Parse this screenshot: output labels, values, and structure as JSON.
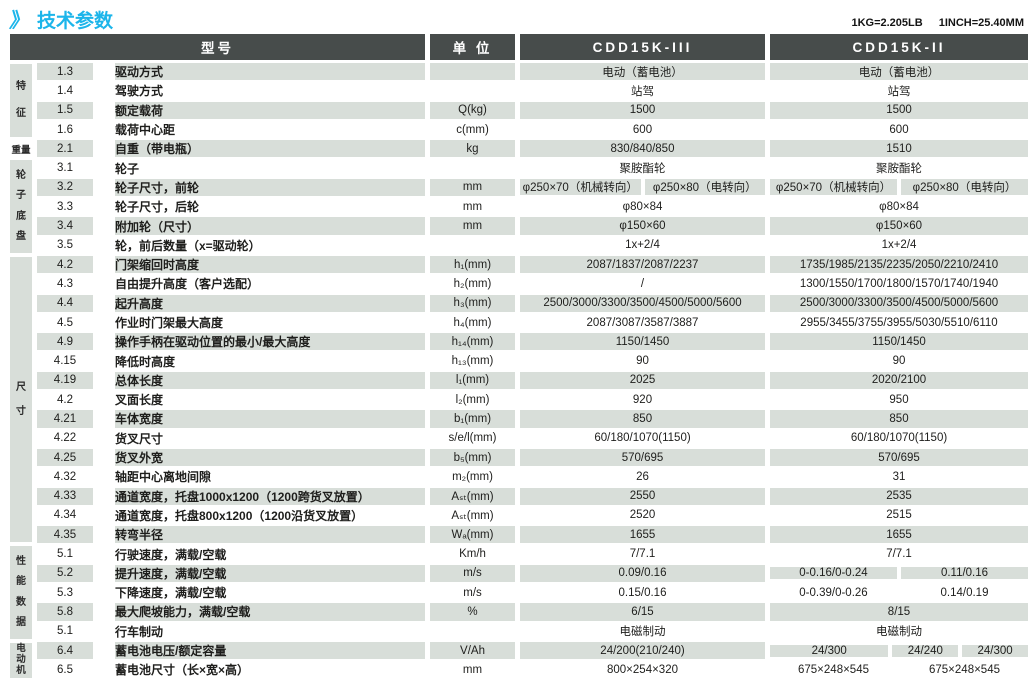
{
  "page": {
    "title_marker": "》",
    "title": "技术参数",
    "conversion": {
      "kg": "1KG=2.205LB",
      "inch": "1INCH=25.40MM"
    }
  },
  "colors": {
    "accent_cyan": "#1cb5ea",
    "header_bg": "#474c4b",
    "stripe_bg": "#d8ded9"
  },
  "table": {
    "headers": {
      "model": "型号",
      "unit": "单 位",
      "col1": "CDD15K-III",
      "col2": "CDD15K-II"
    },
    "groups": [
      {
        "label": "特征",
        "rows": 4,
        "vertical": true,
        "shaded": true
      },
      {
        "label": "重量",
        "rows": 1,
        "vertical": false,
        "shaded": false
      },
      {
        "label": "轮子底盘",
        "rows": 5,
        "vertical": true,
        "shaded": true
      },
      {
        "label": "尺寸",
        "rows": 15,
        "vertical": true,
        "shaded": true,
        "spread": "center"
      },
      {
        "label": "性能数据",
        "rows": 5,
        "vertical": true,
        "shaded": true
      },
      {
        "label": "电动机",
        "rows": 2,
        "vertical": true,
        "shaded": true,
        "tight": true
      }
    ],
    "rows": [
      {
        "no": "1.3",
        "desc": "驱动方式",
        "unit": "",
        "v1": [
          "电动（蓄电池）"
        ],
        "v2": [
          "电动（蓄电池）"
        ]
      },
      {
        "no": "1.4",
        "desc": "驾驶方式",
        "unit": "",
        "v1": [
          "站驾"
        ],
        "v2": [
          "站驾"
        ]
      },
      {
        "no": "1.5",
        "desc": "额定载荷",
        "unit": "Q(kg)",
        "v1": [
          "1500"
        ],
        "v2": [
          "1500"
        ]
      },
      {
        "no": "1.6",
        "desc": "载荷中心距",
        "unit": "c(mm)",
        "v1": [
          "600"
        ],
        "v2": [
          "600"
        ]
      },
      {
        "no": "2.1",
        "desc": "自重（带电瓶）",
        "unit": "kg",
        "v1": [
          "830/840/850"
        ],
        "v2": [
          "1510"
        ]
      },
      {
        "no": "3.1",
        "desc": "轮子",
        "unit": "",
        "v1": [
          "聚胺酯轮"
        ],
        "v2": [
          "聚胺酯轮"
        ]
      },
      {
        "no": "3.2",
        "desc": "轮子尺寸，前轮",
        "unit": "mm",
        "v1": [
          "φ250×70（机械转向）",
          "φ250×80（电转向）"
        ],
        "v2": [
          "φ250×70（机械转向）",
          "φ250×80（电转向）"
        ]
      },
      {
        "no": "3.3",
        "desc": "轮子尺寸，后轮",
        "unit": "mm",
        "v1": [
          "φ80×84"
        ],
        "v2": [
          "φ80×84"
        ]
      },
      {
        "no": "3.4",
        "desc": "附加轮（尺寸）",
        "unit": "mm",
        "v1": [
          "φ150×60"
        ],
        "v2": [
          "φ150×60"
        ]
      },
      {
        "no": "3.5",
        "desc": "轮，前后数量（x=驱动轮）",
        "unit": "",
        "v1": [
          "1x+2/4"
        ],
        "v2": [
          "1x+2/4"
        ]
      },
      {
        "no": "4.2",
        "desc": "门架缩回时高度",
        "unit": "h₁(mm)",
        "v1": [
          "2087/1837/2087/2237"
        ],
        "v2": [
          "1735/1985/2135/2235/2050/2210/2410"
        ]
      },
      {
        "no": "4.3",
        "desc": "自由提升高度（客户选配）",
        "unit": "h₂(mm)",
        "v1": [
          "/"
        ],
        "v2": [
          "1300/1550/1700/1800/1570/1740/1940"
        ]
      },
      {
        "no": "4.4",
        "desc": "起升高度",
        "unit": "h₃(mm)",
        "v1": [
          "2500/3000/3300/3500/4500/5000/5600"
        ],
        "v2": [
          "2500/3000/3300/3500/4500/5000/5600"
        ]
      },
      {
        "no": "4.5",
        "desc": "作业时门架最大高度",
        "unit": "h₄(mm)",
        "v1": [
          "2087/3087/3587/3887"
        ],
        "v2": [
          "2955/3455/3755/3955/5030/5510/6110"
        ]
      },
      {
        "no": "4.9",
        "desc": "操作手柄在驱动位置的最小/最大高度",
        "unit": "h₁₄(mm)",
        "v1": [
          "1150/1450"
        ],
        "v2": [
          "1150/1450"
        ]
      },
      {
        "no": "4.15",
        "desc": "降低时高度",
        "unit": "h₁₃(mm)",
        "v1": [
          "90"
        ],
        "v2": [
          "90"
        ]
      },
      {
        "no": "4.19",
        "desc": "总体长度",
        "unit": "l₁(mm)",
        "v1": [
          "2025"
        ],
        "v2": [
          "2020/2100"
        ]
      },
      {
        "no": "4.2",
        "desc": "叉面长度",
        "unit": "l₂(mm)",
        "v1": [
          "920"
        ],
        "v2": [
          "950"
        ]
      },
      {
        "no": "4.21",
        "desc": "车体宽度",
        "unit": "b₁(mm)",
        "v1": [
          "850"
        ],
        "v2": [
          "850"
        ]
      },
      {
        "no": "4.22",
        "desc": "货叉尺寸",
        "unit": "s/e/l(mm)",
        "v1": [
          "60/180/1070(1150)"
        ],
        "v2": [
          "60/180/1070(1150)"
        ]
      },
      {
        "no": "4.25",
        "desc": "货叉外宽",
        "unit": "b₅(mm)",
        "v1": [
          "570/695"
        ],
        "v2": [
          "570/695"
        ]
      },
      {
        "no": "4.32",
        "desc": "轴距中心离地间隙",
        "unit": "m₂(mm)",
        "v1": [
          "26"
        ],
        "v2": [
          "31"
        ]
      },
      {
        "no": "4.33",
        "desc": "通道宽度，托盘1000x1200（1200跨货叉放置）",
        "unit": "Aₛₜ(mm)",
        "v1": [
          "2550"
        ],
        "v2": [
          "2535"
        ]
      },
      {
        "no": "4.34",
        "desc": "通道宽度，托盘800x1200（1200沿货叉放置）",
        "unit": "Aₛₜ(mm)",
        "v1": [
          "2520"
        ],
        "v2": [
          "2515"
        ]
      },
      {
        "no": "4.35",
        "desc": "转弯半径",
        "unit": "Wₐ(mm)",
        "v1": [
          "1655"
        ],
        "v2": [
          "1655"
        ]
      },
      {
        "no": "5.1",
        "desc": "行驶速度，满载/空载",
        "unit": "Km/h",
        "v1": [
          "7/7.1"
        ],
        "v2": [
          "7/7.1"
        ]
      },
      {
        "no": "5.2",
        "desc": "提升速度，满载/空载",
        "unit": "m/s",
        "v1": [
          "0.09/0.16"
        ],
        "v2": [
          "0-0.16/0-0.24",
          "0.11/0.16"
        ]
      },
      {
        "no": "5.3",
        "desc": "下降速度，满载/空载",
        "unit": "m/s",
        "v1": [
          "0.15/0.16"
        ],
        "v2": [
          "0-0.39/0-0.26",
          "0.14/0.19"
        ]
      },
      {
        "no": "5.8",
        "desc": "最大爬坡能力，满载/空载",
        "unit": "%",
        "v1": [
          "6/15"
        ],
        "v2": [
          "8/15"
        ]
      },
      {
        "no": "5.1",
        "desc": "行车制动",
        "unit": "",
        "v1": [
          "电磁制动"
        ],
        "v2": [
          "电磁制动"
        ]
      },
      {
        "no": "6.4",
        "desc": "蓄电池电压/额定容量",
        "unit": "V/Ah",
        "v1": [
          "24/200(210/240)"
        ],
        "v2": [
          "24/300",
          "24/240",
          "24/300"
        ],
        "v2w": [
          1.8,
          1,
          1
        ]
      },
      {
        "no": "6.5",
        "desc": "蓄电池尺寸（长×宽×高）",
        "unit": "mm",
        "v1": [
          "800×254×320"
        ],
        "v2": [
          "675×248×545",
          "675×248×545"
        ]
      }
    ]
  }
}
